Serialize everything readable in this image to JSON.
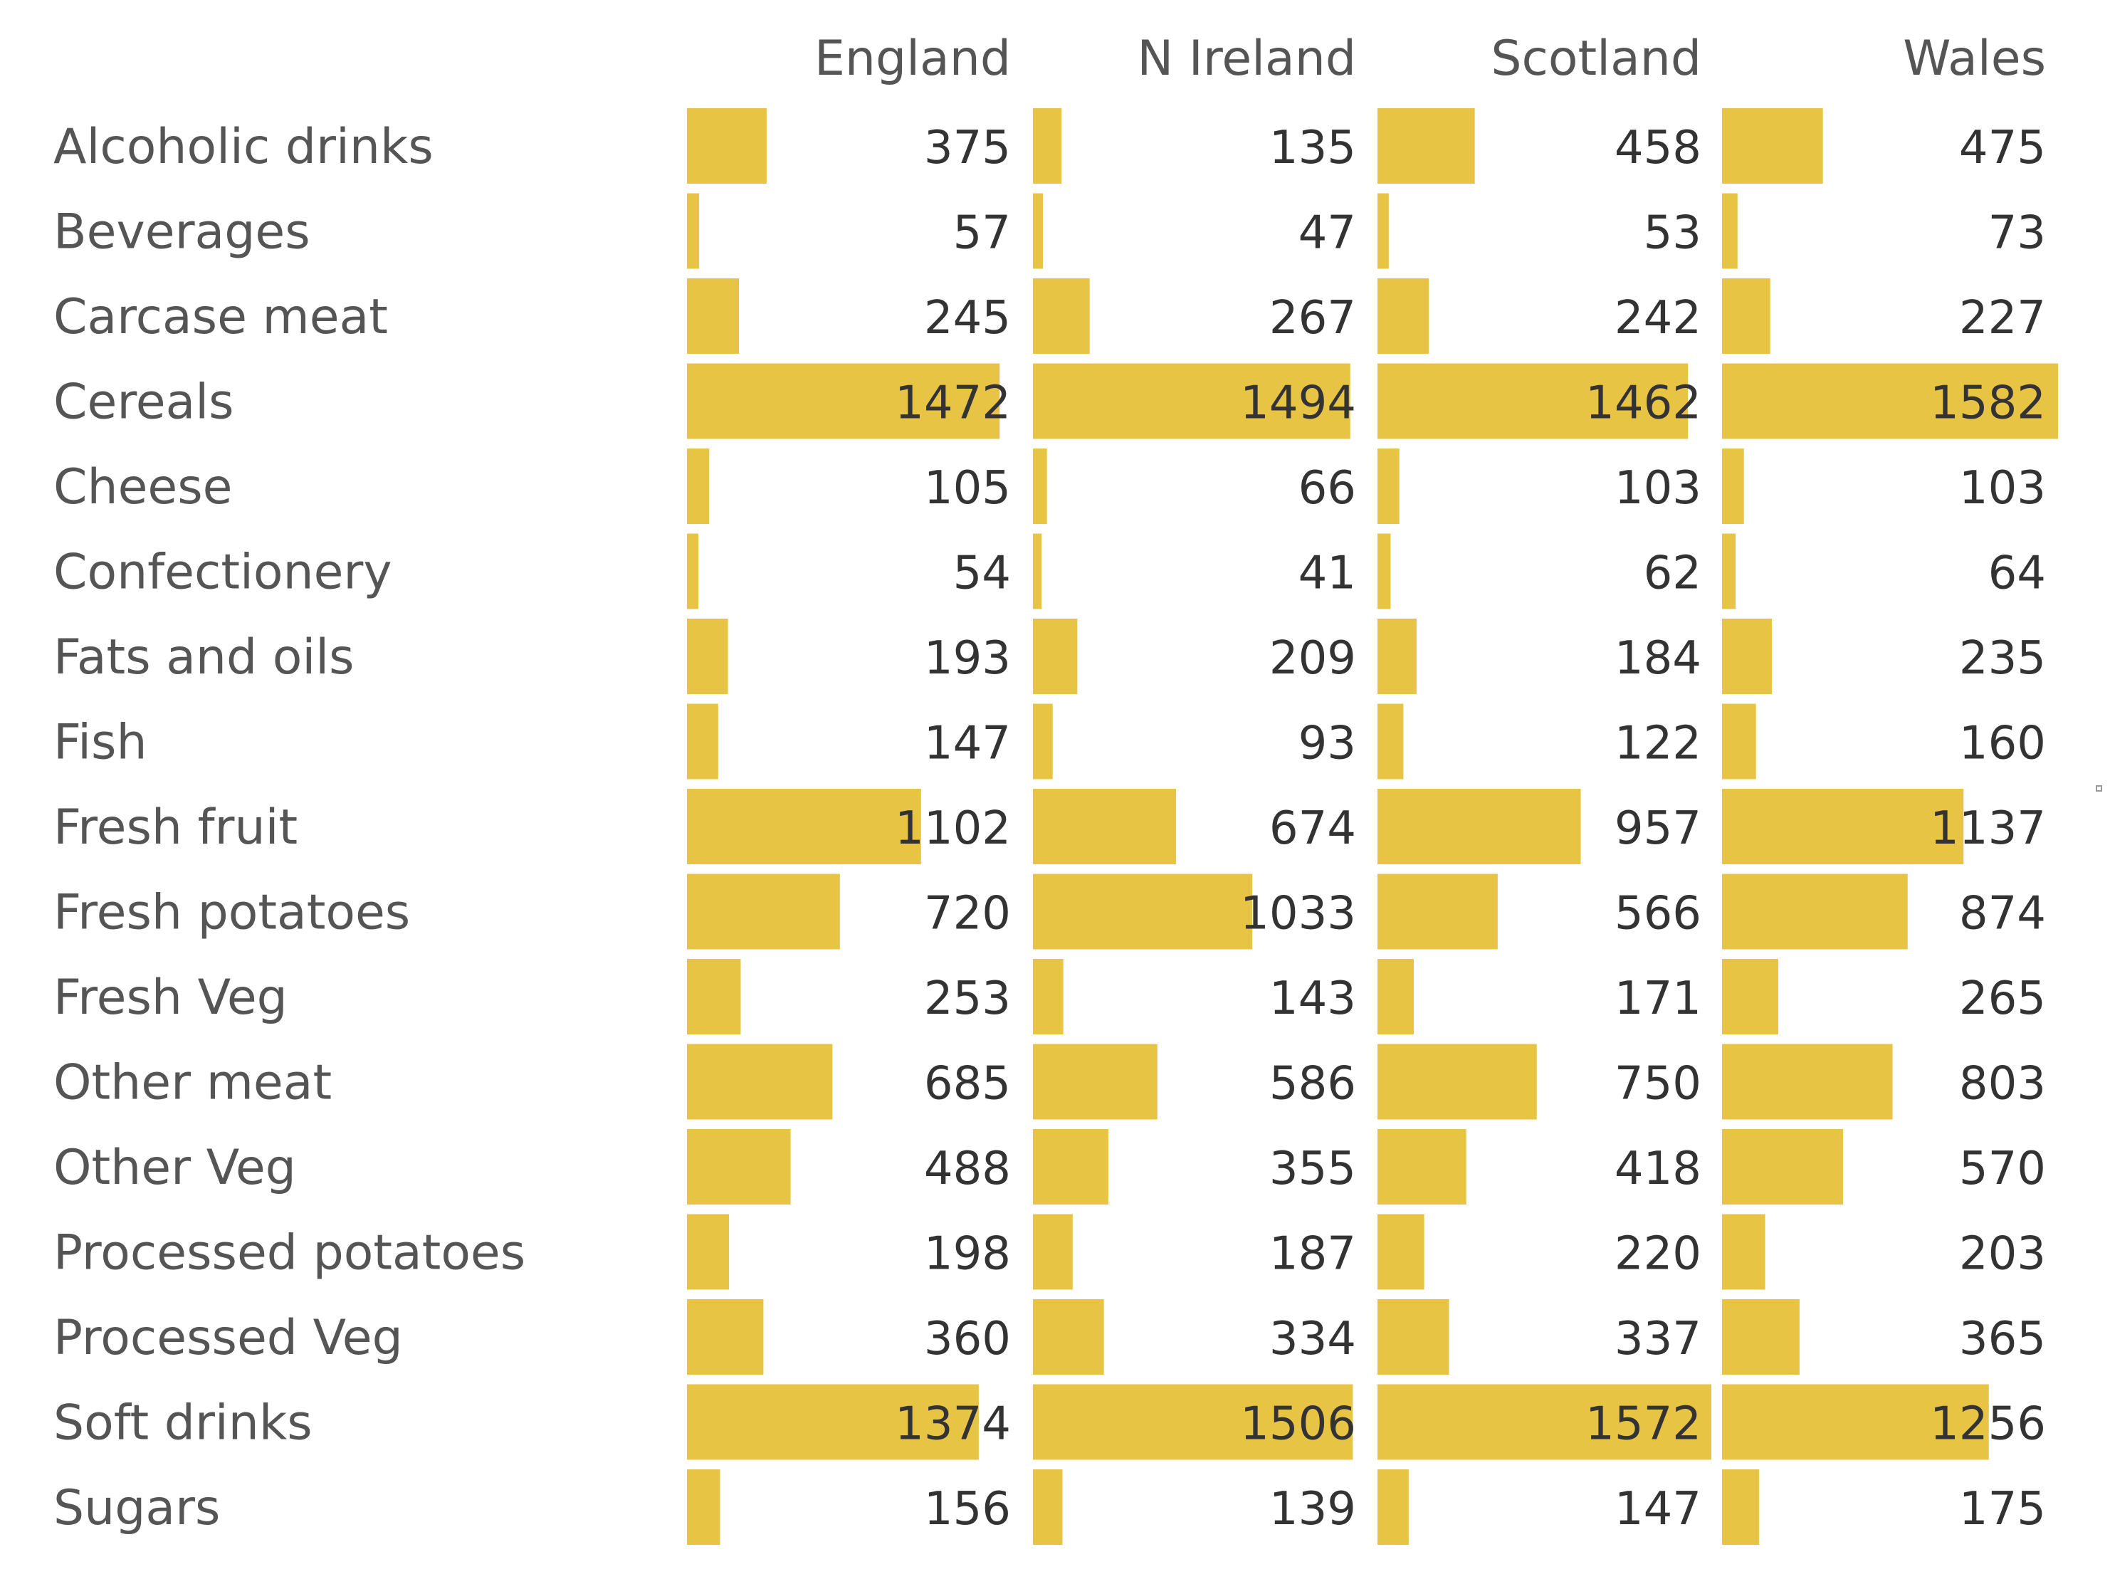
{
  "chart_data": {
    "type": "bar",
    "columns": [
      "England",
      "N Ireland",
      "Scotland",
      "Wales"
    ],
    "categories": [
      "Alcoholic drinks",
      "Beverages",
      "Carcase meat",
      "Cereals",
      "Cheese",
      "Confectionery",
      "Fats and oils",
      "Fish",
      "Fresh fruit",
      "Fresh potatoes",
      "Fresh Veg",
      "Other meat",
      "Other Veg",
      "Processed potatoes",
      "Processed Veg",
      "Soft drinks",
      "Sugars"
    ],
    "series": [
      {
        "name": "England",
        "values": [
          375,
          57,
          245,
          1472,
          105,
          54,
          193,
          147,
          1102,
          720,
          253,
          685,
          488,
          198,
          360,
          1374,
          156
        ]
      },
      {
        "name": "N Ireland",
        "values": [
          135,
          47,
          267,
          1494,
          66,
          41,
          209,
          93,
          674,
          1033,
          143,
          586,
          355,
          187,
          334,
          1506,
          139
        ]
      },
      {
        "name": "Scotland",
        "values": [
          458,
          53,
          242,
          1462,
          103,
          62,
          184,
          122,
          957,
          566,
          171,
          750,
          418,
          220,
          337,
          1572,
          147
        ]
      },
      {
        "name": "Wales",
        "values": [
          475,
          73,
          227,
          1582,
          103,
          64,
          235,
          160,
          1137,
          874,
          265,
          803,
          570,
          203,
          365,
          1256,
          175
        ]
      }
    ],
    "xlim": [
      0,
      1582
    ],
    "bar_color": "#e8c445",
    "grid": false,
    "legend": "none"
  }
}
